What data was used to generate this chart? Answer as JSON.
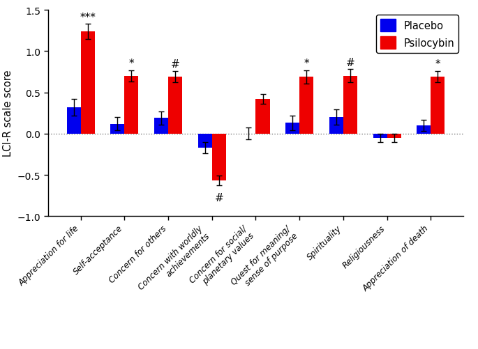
{
  "categories": [
    "Appreciation for life",
    "Self-acceptance",
    "Concern for others",
    "Concern with worldly\nachievements",
    "Concern for social/\nplanetary values",
    "Quest for meaning/\nsense of purpose",
    "Spirituality",
    "Religiousness",
    "Appreciation of death"
  ],
  "placebo_values": [
    0.32,
    0.12,
    0.19,
    -0.17,
    0.0,
    0.13,
    0.2,
    -0.05,
    0.1
  ],
  "psilocybin_values": [
    1.24,
    0.7,
    0.69,
    -0.57,
    0.42,
    0.69,
    0.7,
    -0.05,
    0.69
  ],
  "placebo_errors": [
    0.1,
    0.08,
    0.08,
    0.07,
    0.07,
    0.09,
    0.09,
    0.05,
    0.07
  ],
  "psilocybin_errors": [
    0.09,
    0.07,
    0.07,
    0.06,
    0.06,
    0.08,
    0.08,
    0.05,
    0.07
  ],
  "annotations": [
    "***",
    "*",
    "#",
    "#",
    "",
    "*",
    "#",
    "",
    "*"
  ],
  "annot_on_red": [
    true,
    true,
    true,
    true,
    false,
    true,
    true,
    false,
    true
  ],
  "annot_y": [
    1.34,
    0.78,
    0.77,
    -0.64,
    null,
    0.78,
    0.79,
    null,
    0.77
  ],
  "placebo_color": "#0000ee",
  "psilocybin_color": "#ee0000",
  "ylabel": "LCI-R scale score",
  "ylim": [
    -1.0,
    1.5
  ],
  "yticks": [
    -1.0,
    -0.5,
    0.0,
    0.5,
    1.0,
    1.5
  ],
  "bar_width": 0.32,
  "figwidth": 6.85,
  "figheight": 5.02,
  "dpi": 100
}
